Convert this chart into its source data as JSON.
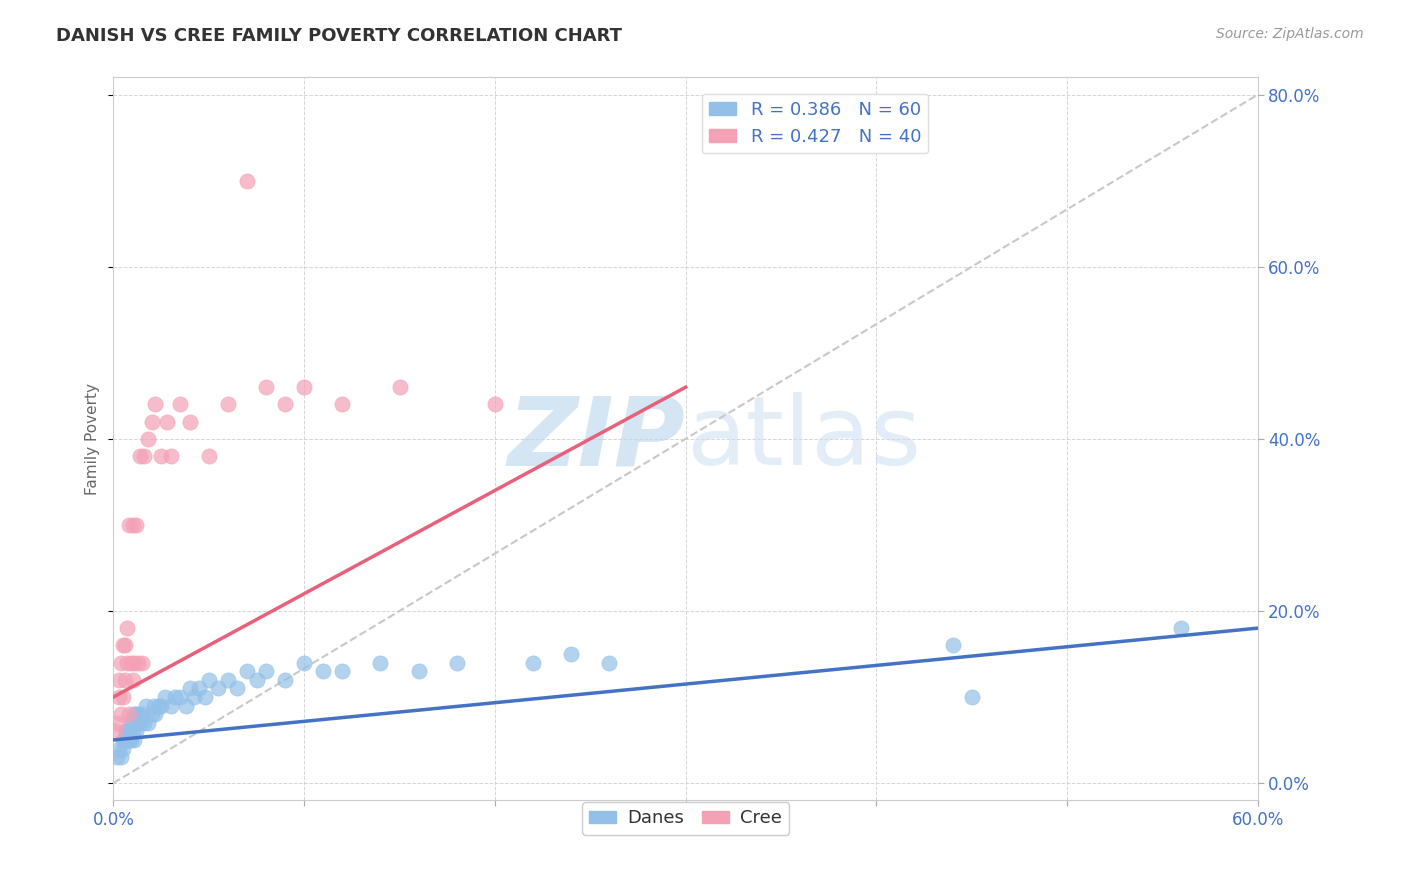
{
  "title": "DANISH VS CREE FAMILY POVERTY CORRELATION CHART",
  "source": "Source: ZipAtlas.com",
  "xlim": [
    0.0,
    0.6
  ],
  "ylim": [
    -0.02,
    0.82
  ],
  "ylabel": "Family Poverty",
  "dane_color": "#92C0E8",
  "cree_color": "#F4A0B5",
  "dane_line_color": "#4472C4",
  "cree_line_color": "#E8607A",
  "ref_line_color": "#C8C8C8",
  "watermark_color": "#D8E8F4",
  "danes_x": [
    0.002,
    0.003,
    0.004,
    0.005,
    0.005,
    0.006,
    0.006,
    0.007,
    0.007,
    0.008,
    0.008,
    0.009,
    0.009,
    0.01,
    0.01,
    0.011,
    0.011,
    0.012,
    0.012,
    0.013,
    0.013,
    0.014,
    0.015,
    0.016,
    0.017,
    0.018,
    0.02,
    0.021,
    0.022,
    0.024,
    0.025,
    0.027,
    0.03,
    0.032,
    0.035,
    0.038,
    0.04,
    0.042,
    0.045,
    0.048,
    0.05,
    0.055,
    0.06,
    0.065,
    0.07,
    0.075,
    0.08,
    0.09,
    0.1,
    0.11,
    0.12,
    0.14,
    0.16,
    0.18,
    0.22,
    0.24,
    0.26,
    0.44,
    0.45,
    0.56
  ],
  "danes_y": [
    0.03,
    0.04,
    0.03,
    0.05,
    0.04,
    0.05,
    0.06,
    0.05,
    0.06,
    0.05,
    0.06,
    0.05,
    0.07,
    0.06,
    0.07,
    0.05,
    0.08,
    0.06,
    0.08,
    0.07,
    0.08,
    0.07,
    0.08,
    0.07,
    0.09,
    0.07,
    0.08,
    0.09,
    0.08,
    0.09,
    0.09,
    0.1,
    0.09,
    0.1,
    0.1,
    0.09,
    0.11,
    0.1,
    0.11,
    0.1,
    0.12,
    0.11,
    0.12,
    0.11,
    0.13,
    0.12,
    0.13,
    0.12,
    0.14,
    0.13,
    0.13,
    0.14,
    0.13,
    0.14,
    0.14,
    0.15,
    0.14,
    0.16,
    0.1,
    0.18
  ],
  "cree_x": [
    0.001,
    0.002,
    0.003,
    0.003,
    0.004,
    0.004,
    0.005,
    0.005,
    0.006,
    0.006,
    0.007,
    0.007,
    0.008,
    0.008,
    0.009,
    0.01,
    0.01,
    0.011,
    0.012,
    0.013,
    0.014,
    0.015,
    0.016,
    0.018,
    0.02,
    0.022,
    0.025,
    0.028,
    0.03,
    0.035,
    0.04,
    0.05,
    0.06,
    0.07,
    0.08,
    0.09,
    0.1,
    0.12,
    0.15,
    0.2
  ],
  "cree_y": [
    0.06,
    0.07,
    0.1,
    0.12,
    0.08,
    0.14,
    0.1,
    0.16,
    0.12,
    0.16,
    0.14,
    0.18,
    0.08,
    0.3,
    0.14,
    0.12,
    0.3,
    0.14,
    0.3,
    0.14,
    0.38,
    0.14,
    0.38,
    0.4,
    0.42,
    0.44,
    0.38,
    0.42,
    0.38,
    0.44,
    0.42,
    0.38,
    0.44,
    0.7,
    0.46,
    0.44,
    0.46,
    0.44,
    0.46,
    0.44
  ],
  "dane_trendline": [
    0.05,
    0.18
  ],
  "cree_trendline_x": [
    0.0,
    0.3
  ],
  "cree_trendline_y": [
    0.1,
    0.46
  ]
}
